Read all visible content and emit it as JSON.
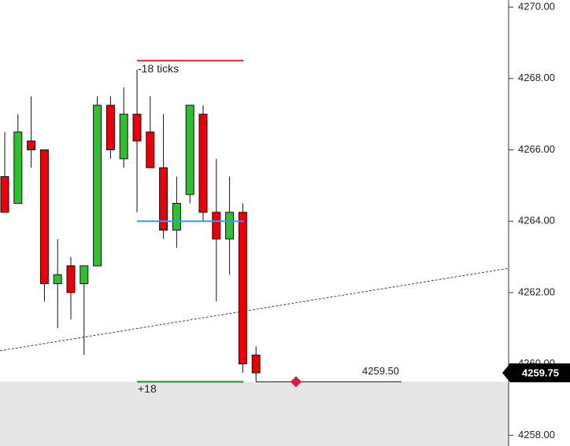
{
  "chart_data": {
    "type": "candlestick",
    "open": [
      4265.25,
      4264.5,
      4266.25,
      4266,
      4262.25,
      4262.75,
      4262.25,
      4262.75,
      4267.25,
      4265.75,
      4267,
      4266.5,
      4265.5,
      4263.75,
      4264.75,
      4267,
      4264.25,
      4263.5,
      4264.25,
      4260.25
    ],
    "high": [
      4266.5,
      4267,
      4267.5,
      4266,
      4263.5,
      4263,
      4262.75,
      4267.5,
      4267.5,
      4267.75,
      4268.25,
      4267.5,
      4267,
      4265.25,
      4267.25,
      4267.25,
      4265.75,
      4265.25,
      4264.5,
      4260.5
    ],
    "low": [
      4264.25,
      4264.5,
      4265.5,
      4261.75,
      4261,
      4261.25,
      4260.25,
      4262.75,
      4265.75,
      4265.5,
      4264.25,
      4265.5,
      4263.5,
      4263.25,
      4264.5,
      4264,
      4261.75,
      4262.5,
      4259.75,
      4259.5
    ],
    "close": [
      4264.25,
      4266.5,
      4266,
      4262.25,
      4262.5,
      4262,
      4262.75,
      4267.25,
      4266,
      4267,
      4266.25,
      4265.5,
      4263.75,
      4264.5,
      4267.25,
      4264.25,
      4263.5,
      4264.25,
      4260,
      4259.75
    ],
    "up_color": "#2fbf2f",
    "down_color": "#e8000b",
    "ylim": [
      4257.7,
      4270.2
    ],
    "yticks": [
      {
        "value": 4270,
        "label": "4270.00"
      },
      {
        "value": 4268,
        "label": "4268.00"
      },
      {
        "value": 4266,
        "label": "4266.00"
      },
      {
        "value": 4264,
        "label": "4264.00"
      },
      {
        "value": 4262,
        "label": "4262.00"
      },
      {
        "value": 4260,
        "label": "4260.00"
      },
      {
        "value": 4258,
        "label": "4258.00"
      }
    ],
    "order_lines": [
      {
        "label": "-18 ticks",
        "price": 4268.5,
        "color": "#e8262b"
      },
      {
        "price": 4264,
        "color": "#3399ff"
      },
      {
        "label": "+18",
        "price": 4259.5,
        "color": "#1f8f1f"
      }
    ],
    "position": {
      "price": 4259.5,
      "label": "4259.50"
    },
    "trendline": [
      4260.37,
      4262.68
    ],
    "last_price": {
      "value": 4259.75,
      "label": "4259.75"
    }
  }
}
